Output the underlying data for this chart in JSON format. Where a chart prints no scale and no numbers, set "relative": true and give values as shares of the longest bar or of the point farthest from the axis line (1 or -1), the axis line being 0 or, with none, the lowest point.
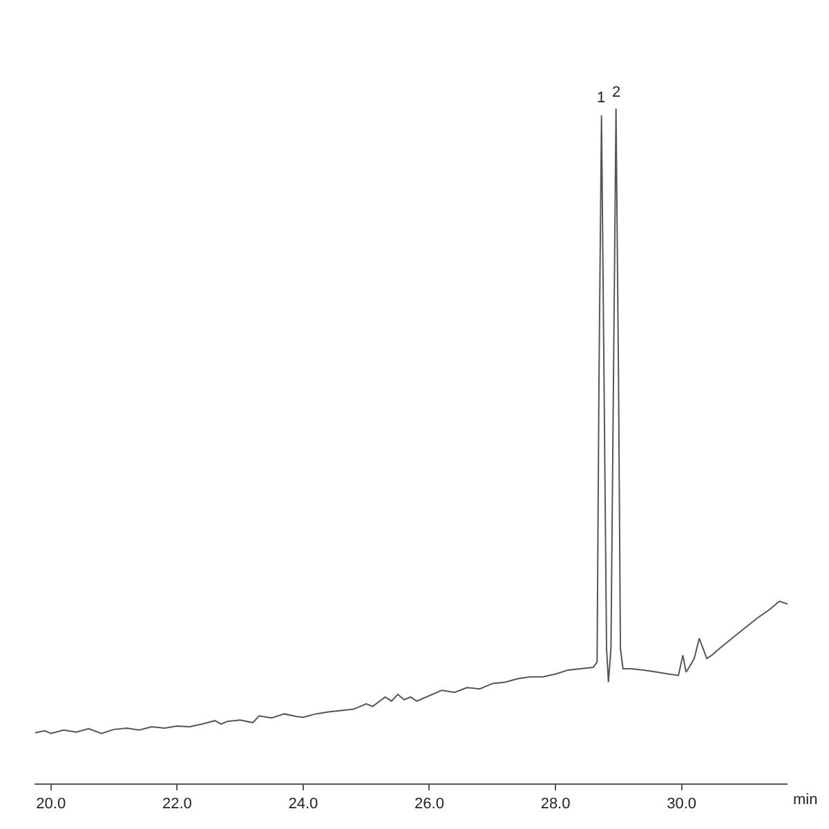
{
  "chart_data": {
    "type": "line",
    "relative": true,
    "xlabel": "min",
    "x": [
      19.75,
      19.9,
      20.0,
      20.2,
      20.4,
      20.6,
      20.8,
      21.0,
      21.2,
      21.4,
      21.6,
      21.8,
      22.0,
      22.2,
      22.4,
      22.6,
      22.7,
      22.8,
      23.0,
      23.2,
      23.3,
      23.5,
      23.7,
      23.9,
      24.0,
      24.2,
      24.4,
      24.6,
      24.8,
      25.0,
      25.1,
      25.3,
      25.4,
      25.5,
      25.6,
      25.7,
      25.8,
      26.0,
      26.2,
      26.4,
      26.6,
      26.8,
      27.0,
      27.2,
      27.4,
      27.6,
      27.8,
      28.0,
      28.2,
      28.4,
      28.6,
      28.66,
      28.69,
      28.73,
      28.77,
      28.81,
      28.84,
      28.88,
      28.92,
      28.96,
      29.0,
      29.03,
      29.07,
      29.2,
      29.4,
      29.6,
      29.8,
      29.95,
      30.02,
      30.07,
      30.12,
      30.2,
      30.28,
      30.34,
      30.4,
      30.48,
      30.6,
      30.8,
      31.0,
      31.2,
      31.4,
      31.55,
      31.68
    ],
    "series": [
      {
        "color": "#555555",
        "values": [
          0.075,
          0.078,
          0.074,
          0.079,
          0.076,
          0.081,
          0.074,
          0.08,
          0.082,
          0.079,
          0.084,
          0.082,
          0.085,
          0.084,
          0.088,
          0.093,
          0.088,
          0.092,
          0.094,
          0.09,
          0.1,
          0.097,
          0.103,
          0.099,
          0.098,
          0.103,
          0.106,
          0.108,
          0.11,
          0.118,
          0.114,
          0.128,
          0.122,
          0.132,
          0.124,
          0.128,
          0.122,
          0.13,
          0.138,
          0.135,
          0.142,
          0.14,
          0.148,
          0.15,
          0.155,
          0.158,
          0.158,
          0.162,
          0.168,
          0.17,
          0.172,
          0.18,
          0.6,
          0.99,
          0.6,
          0.2,
          0.15,
          0.2,
          0.6,
          1.0,
          0.6,
          0.2,
          0.17,
          0.17,
          0.168,
          0.165,
          0.162,
          0.16,
          0.19,
          0.165,
          0.172,
          0.185,
          0.215,
          0.2,
          0.185,
          0.19,
          0.2,
          0.215,
          0.23,
          0.245,
          0.258,
          0.27,
          0.266
        ]
      }
    ],
    "xlim": [
      19.74,
      31.68
    ],
    "xticks": [
      {
        "value": 20,
        "label": "20.0"
      },
      {
        "value": 22,
        "label": "22.0"
      },
      {
        "value": 24,
        "label": "24.0"
      },
      {
        "value": 26,
        "label": "26.0"
      },
      {
        "value": 28,
        "label": "28.0"
      },
      {
        "value": 30,
        "label": "30.0"
      }
    ],
    "annotations": [
      {
        "text": "1",
        "x": 28.73,
        "y": 0.99
      },
      {
        "text": "2",
        "x": 28.96,
        "y": 1.0
      }
    ]
  }
}
